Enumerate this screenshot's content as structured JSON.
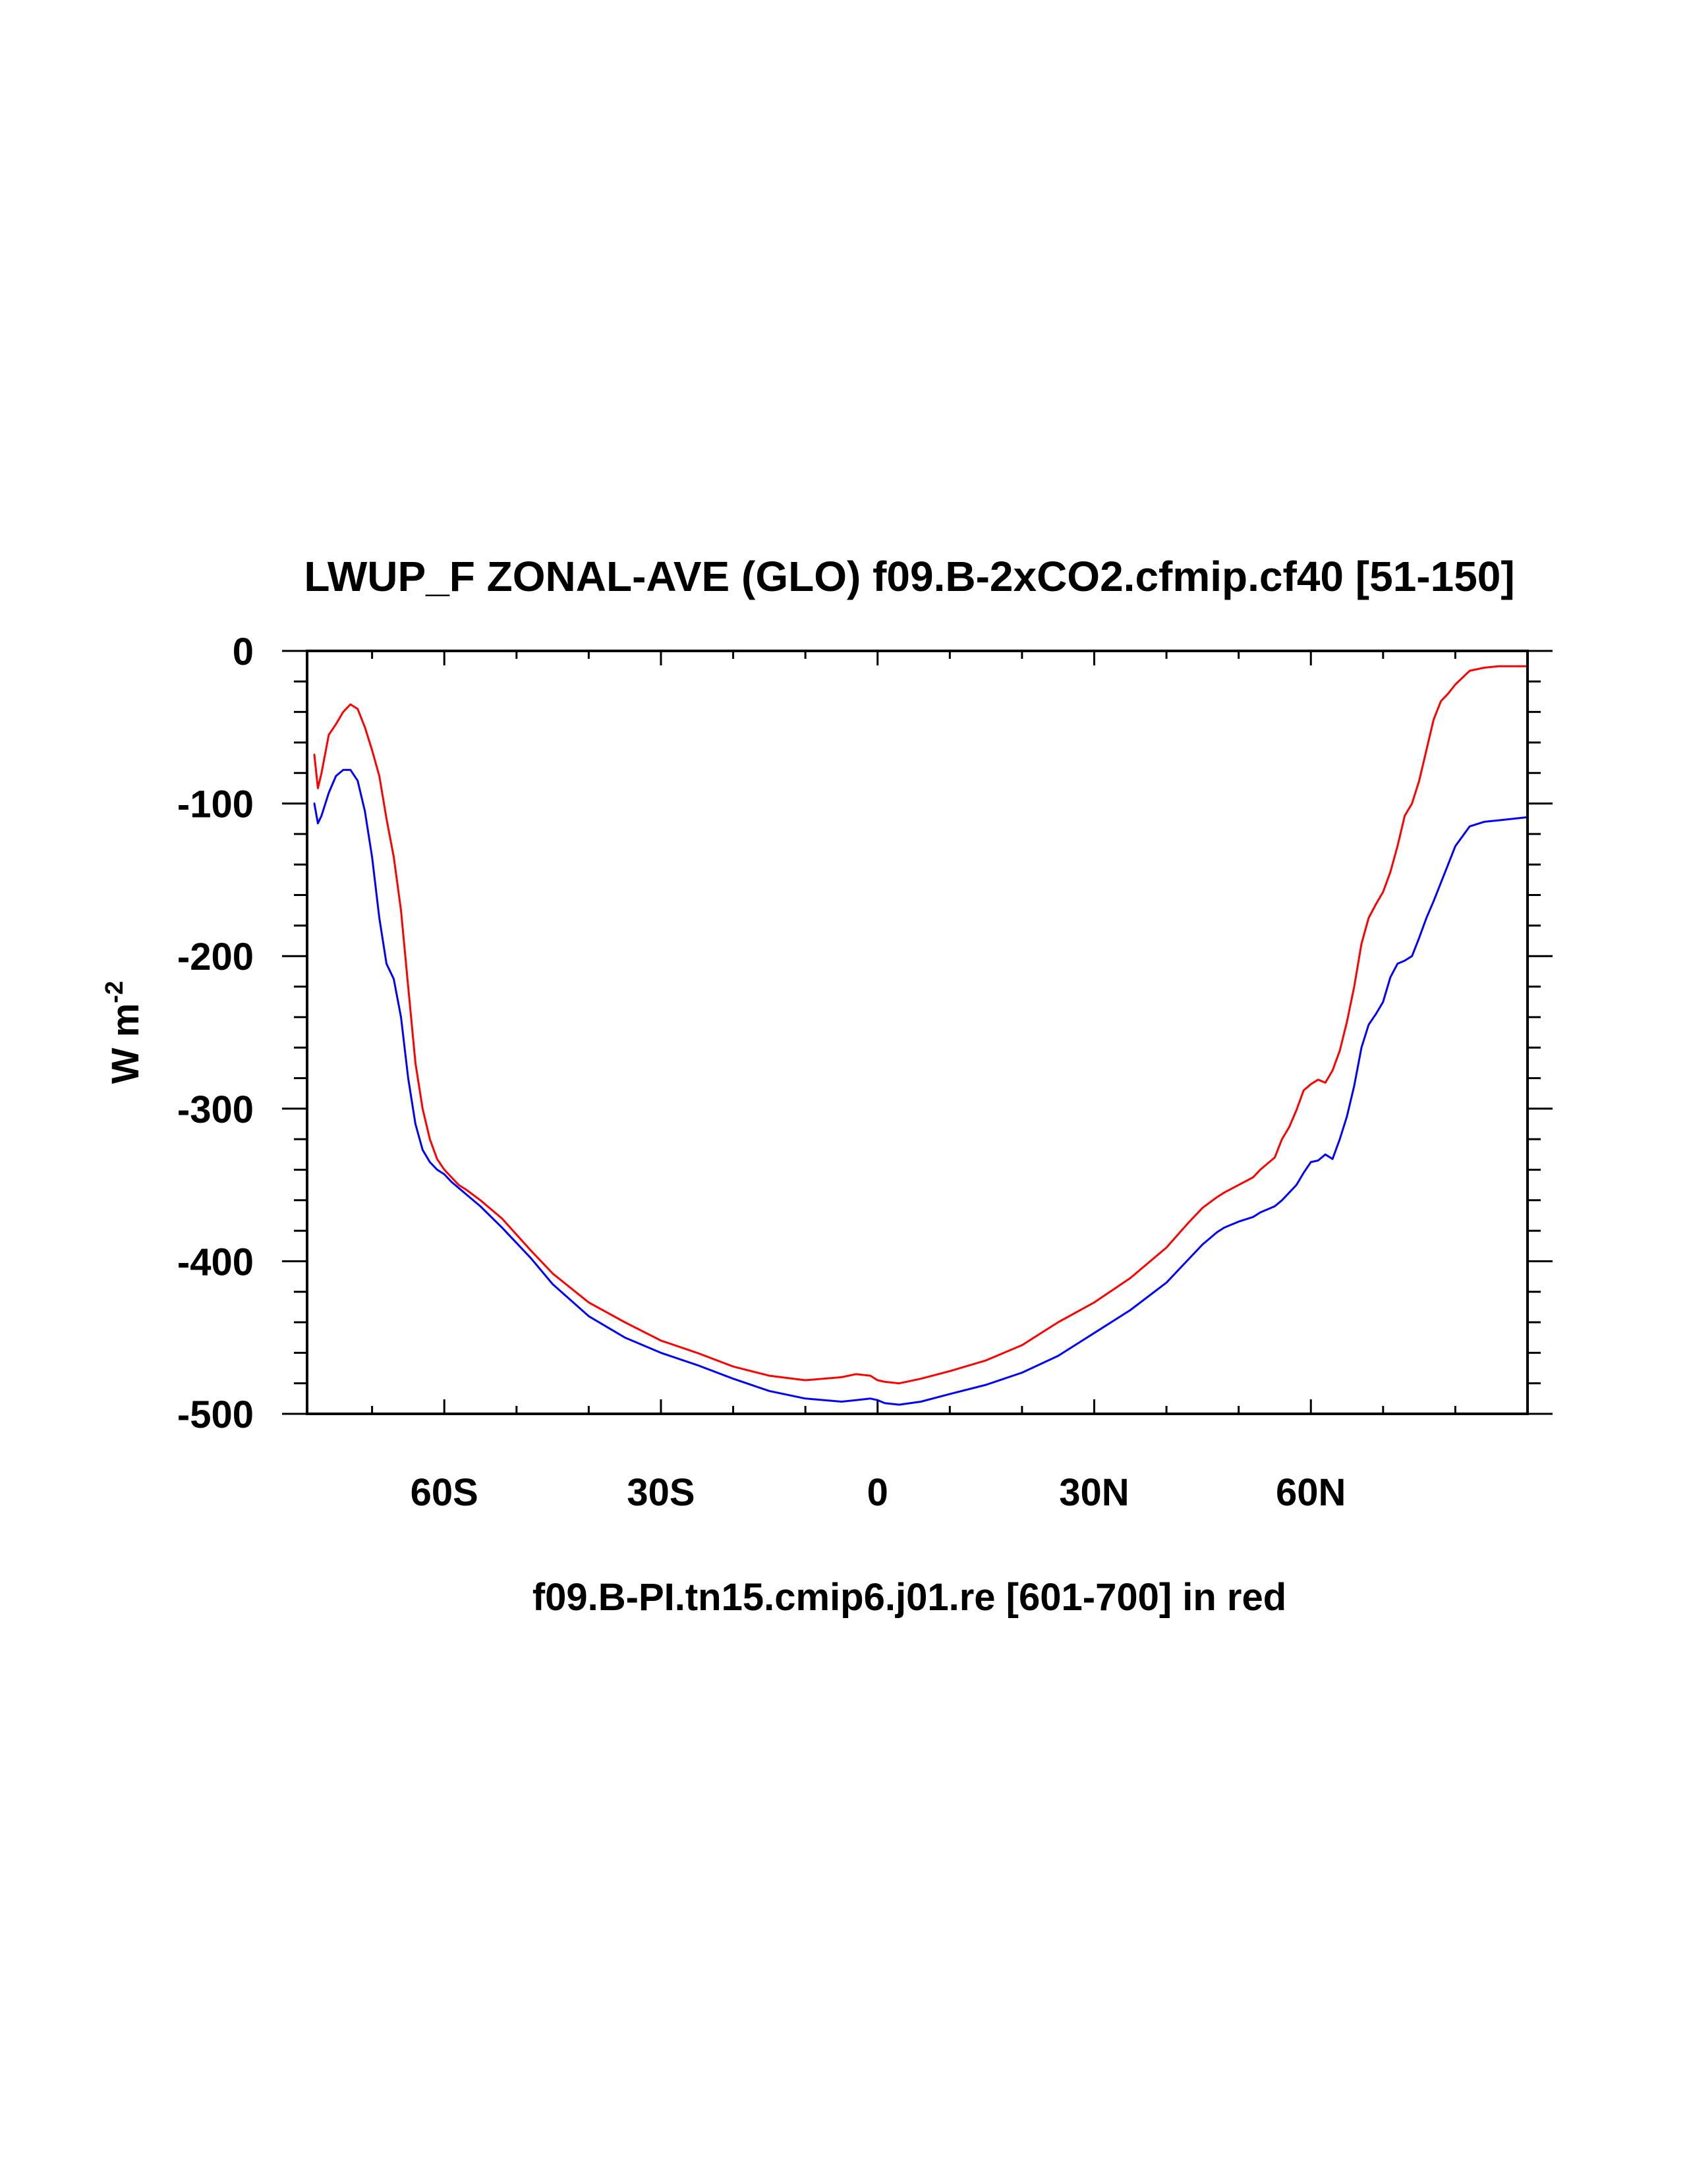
{
  "chart_data": {
    "type": "line",
    "title": "LWUP_F ZONAL-AVE (GLO) f09.B-2xCO2.cfmip.cf40 [51-150]",
    "xlabel": "f09.B-PI.tn15.cmip6.j01.re [601-700] in red",
    "ylabel": "W m",
    "ylabel_sup": "-2",
    "xlim": [
      -79,
      90
    ],
    "ylim": [
      -500,
      0
    ],
    "x_ticks": [
      {
        "value": -60,
        "label": "60S"
      },
      {
        "value": -30,
        "label": "30S"
      },
      {
        "value": 0,
        "label": "0"
      },
      {
        "value": 30,
        "label": "30N"
      },
      {
        "value": 60,
        "label": "60N"
      }
    ],
    "y_ticks": [
      {
        "value": 0,
        "label": "0"
      },
      {
        "value": -100,
        "label": "-100"
      },
      {
        "value": -200,
        "label": "-200"
      },
      {
        "value": -300,
        "label": "-300"
      },
      {
        "value": -400,
        "label": "-400"
      },
      {
        "value": -500,
        "label": "-500"
      }
    ],
    "grid": false,
    "series": [
      {
        "color": "#ff0000",
        "x": [
          -78,
          -77.5,
          -77,
          -76,
          -75,
          -74,
          -73,
          -72,
          -71,
          -70,
          -69,
          -68,
          -67,
          -66,
          -65,
          -64,
          -63,
          -62,
          -61,
          -60,
          -59,
          -58,
          -57,
          -55,
          -52,
          -48,
          -45,
          -40,
          -35,
          -30,
          -25,
          -20,
          -15,
          -10,
          -5,
          -3,
          -1,
          0,
          1,
          3,
          6,
          10,
          15,
          20,
          25,
          30,
          35,
          40,
          43,
          45,
          47,
          48,
          50,
          52,
          53,
          55,
          56,
          57,
          58,
          59,
          60,
          61,
          62,
          63,
          64,
          65,
          66,
          67,
          68,
          69,
          70,
          71,
          72,
          73,
          74,
          75,
          76,
          77,
          78,
          79,
          80,
          82,
          84,
          86,
          90
        ],
        "y": [
          -68,
          -90,
          -80,
          -55,
          -48,
          -40,
          -35,
          -38,
          -50,
          -65,
          -82,
          -110,
          -135,
          -170,
          -220,
          -270,
          -300,
          -320,
          -333,
          -340,
          -345,
          -350,
          -353,
          -360,
          -372,
          -393,
          -408,
          -427,
          -440,
          -452,
          -460,
          -469,
          -475,
          -478,
          -476,
          -474,
          -475,
          -478,
          -479,
          -480,
          -477,
          -472,
          -465,
          -455,
          -440,
          -427,
          -411,
          -391,
          -375,
          -365,
          -358,
          -355,
          -350,
          -345,
          -340,
          -332,
          -320,
          -312,
          -301,
          -288,
          -284,
          -281,
          -283,
          -275,
          -262,
          -243,
          -220,
          -192,
          -175,
          -166,
          -158,
          -145,
          -128,
          -108,
          -100,
          -85,
          -65,
          -45,
          -33,
          -28,
          -22,
          -13,
          -11,
          -10,
          -10
        ]
      },
      {
        "color": "#0000ff",
        "x": [
          -78,
          -77.5,
          -77,
          -76,
          -75,
          -74,
          -73,
          -72,
          -71,
          -70,
          -69,
          -68,
          -67,
          -66,
          -65,
          -64,
          -63,
          -62,
          -61,
          -60,
          -59,
          -58,
          -57,
          -55,
          -52,
          -48,
          -45,
          -40,
          -35,
          -30,
          -25,
          -20,
          -15,
          -10,
          -5,
          -3,
          -1,
          0,
          1,
          3,
          6,
          10,
          15,
          20,
          25,
          30,
          35,
          40,
          43,
          45,
          47,
          48,
          50,
          52,
          53,
          55,
          56,
          57,
          58,
          59,
          60,
          61,
          62,
          63,
          64,
          65,
          66,
          67,
          68,
          69,
          70,
          71,
          72,
          73,
          74,
          75,
          76,
          77,
          78,
          79,
          80,
          82,
          84,
          86,
          90
        ],
        "y": [
          -100,
          -113,
          -108,
          -93,
          -82,
          -78,
          -78,
          -85,
          -105,
          -135,
          -175,
          -205,
          -215,
          -240,
          -280,
          -310,
          -327,
          -335,
          -340,
          -343,
          -348,
          -352,
          -356,
          -364,
          -378,
          -398,
          -415,
          -436,
          -450,
          -460,
          -468,
          -477,
          -485,
          -490,
          -492,
          -491,
          -490,
          -491,
          -493,
          -494,
          -492,
          -487,
          -481,
          -473,
          -462,
          -447,
          -432,
          -414,
          -399,
          -389,
          -381,
          -378,
          -374,
          -371,
          -368,
          -364,
          -360,
          -355,
          -350,
          -342,
          -335,
          -334,
          -330,
          -333,
          -320,
          -305,
          -285,
          -260,
          -245,
          -238,
          -230,
          -214,
          -205,
          -203,
          -200,
          -188,
          -175,
          -164,
          -152,
          -140,
          -128,
          -115,
          -112,
          -111,
          -109
        ]
      }
    ]
  }
}
